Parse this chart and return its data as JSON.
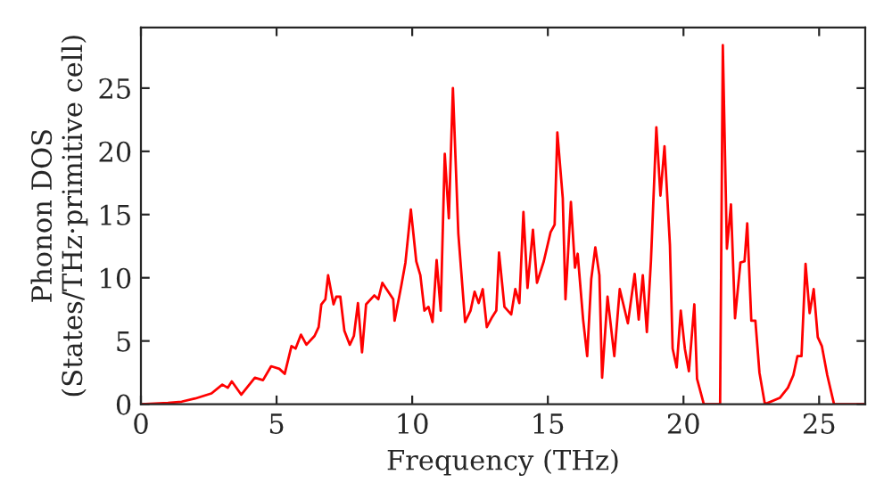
{
  "chart_data": {
    "type": "line",
    "xlabel": "Frequency (THz)",
    "ylabel": "Phonon DOS\n(States/THz·primitive cell)",
    "x": [
      0,
      1,
      1.5,
      2,
      2.6,
      3.0,
      3.2,
      3.35,
      3.7,
      4.2,
      4.5,
      4.8,
      5.1,
      5.3,
      5.55,
      5.7,
      5.9,
      6.1,
      6.4,
      6.55,
      6.65,
      6.8,
      6.9,
      7.1,
      7.2,
      7.35,
      7.5,
      7.7,
      7.85,
      8.0,
      8.15,
      8.3,
      8.6,
      8.75,
      8.9,
      9.3,
      9.35,
      9.6,
      9.75,
      9.95,
      10.15,
      10.3,
      10.45,
      10.6,
      10.75,
      10.9,
      11.05,
      11.2,
      11.35,
      11.5,
      11.7,
      11.95,
      12.15,
      12.3,
      12.45,
      12.6,
      12.75,
      12.95,
      13.1,
      13.2,
      13.4,
      13.65,
      13.8,
      13.95,
      14.1,
      14.25,
      14.45,
      14.6,
      14.85,
      15.1,
      15.25,
      15.35,
      15.55,
      15.65,
      15.85,
      16.0,
      16.1,
      16.3,
      16.45,
      16.6,
      16.75,
      16.9,
      17.0,
      17.2,
      17.45,
      17.65,
      17.95,
      18.2,
      18.35,
      18.5,
      18.65,
      18.8,
      19.0,
      19.15,
      19.3,
      19.5,
      19.6,
      19.75,
      19.9,
      20.05,
      20.2,
      20.4,
      20.5,
      20.75,
      21.35,
      21.45,
      21.6,
      21.75,
      21.9,
      22.1,
      22.25,
      22.35,
      22.5,
      22.65,
      22.8,
      23.0,
      23.55,
      23.85,
      24.05,
      24.2,
      24.35,
      24.5,
      24.65,
      24.8,
      24.95,
      25.1,
      25.3,
      25.55,
      26.7
    ],
    "series": [
      {
        "color": "#ff0000",
        "values": [
          0,
          0.1,
          0.2,
          0.45,
          0.85,
          1.55,
          1.3,
          1.8,
          0.75,
          2.1,
          1.9,
          3.0,
          2.8,
          2.4,
          4.6,
          4.4,
          5.5,
          4.7,
          5.4,
          6.1,
          7.9,
          8.3,
          10.2,
          7.9,
          8.5,
          8.5,
          5.8,
          4.7,
          5.4,
          8.0,
          4.1,
          7.9,
          8.6,
          8.3,
          9.6,
          8.3,
          6.6,
          9.4,
          11.2,
          15.4,
          11.3,
          10.2,
          7.4,
          7.7,
          6.5,
          11.4,
          7.4,
          19.8,
          14.7,
          25.0,
          13.5,
          6.5,
          7.4,
          8.9,
          8.0,
          9.1,
          6.1,
          6.9,
          7.4,
          12.0,
          7.7,
          7.1,
          9.1,
          8.0,
          15.2,
          9.2,
          13.8,
          9.6,
          11.3,
          13.6,
          14.2,
          21.5,
          16.3,
          8.3,
          16.0,
          10.8,
          11.9,
          6.7,
          3.8,
          9.9,
          12.4,
          10.2,
          2.1,
          8.5,
          3.8,
          9.1,
          6.4,
          10.3,
          6.7,
          10.2,
          5.7,
          11.3,
          21.9,
          16.5,
          20.4,
          12.6,
          4.4,
          2.9,
          7.4,
          4.4,
          2.6,
          7.9,
          2.0,
          0,
          0,
          28.4,
          12.3,
          15.8,
          6.8,
          11.2,
          11.3,
          14.3,
          6.6,
          6.6,
          2.5,
          0,
          0.5,
          1.3,
          2.3,
          3.8,
          3.8,
          11.1,
          7.2,
          9.1,
          5.3,
          4.6,
          2.3,
          0,
          0
        ]
      }
    ],
    "xlim": [
      0,
      26.7
    ],
    "ylim": [
      0,
      29.8
    ],
    "xticks": [
      0,
      5,
      10,
      15,
      20,
      25
    ],
    "yticks": [
      0,
      5,
      10,
      15,
      20,
      25
    ],
    "grid": false,
    "legend": false,
    "marker": "none",
    "line_style": "solid"
  }
}
